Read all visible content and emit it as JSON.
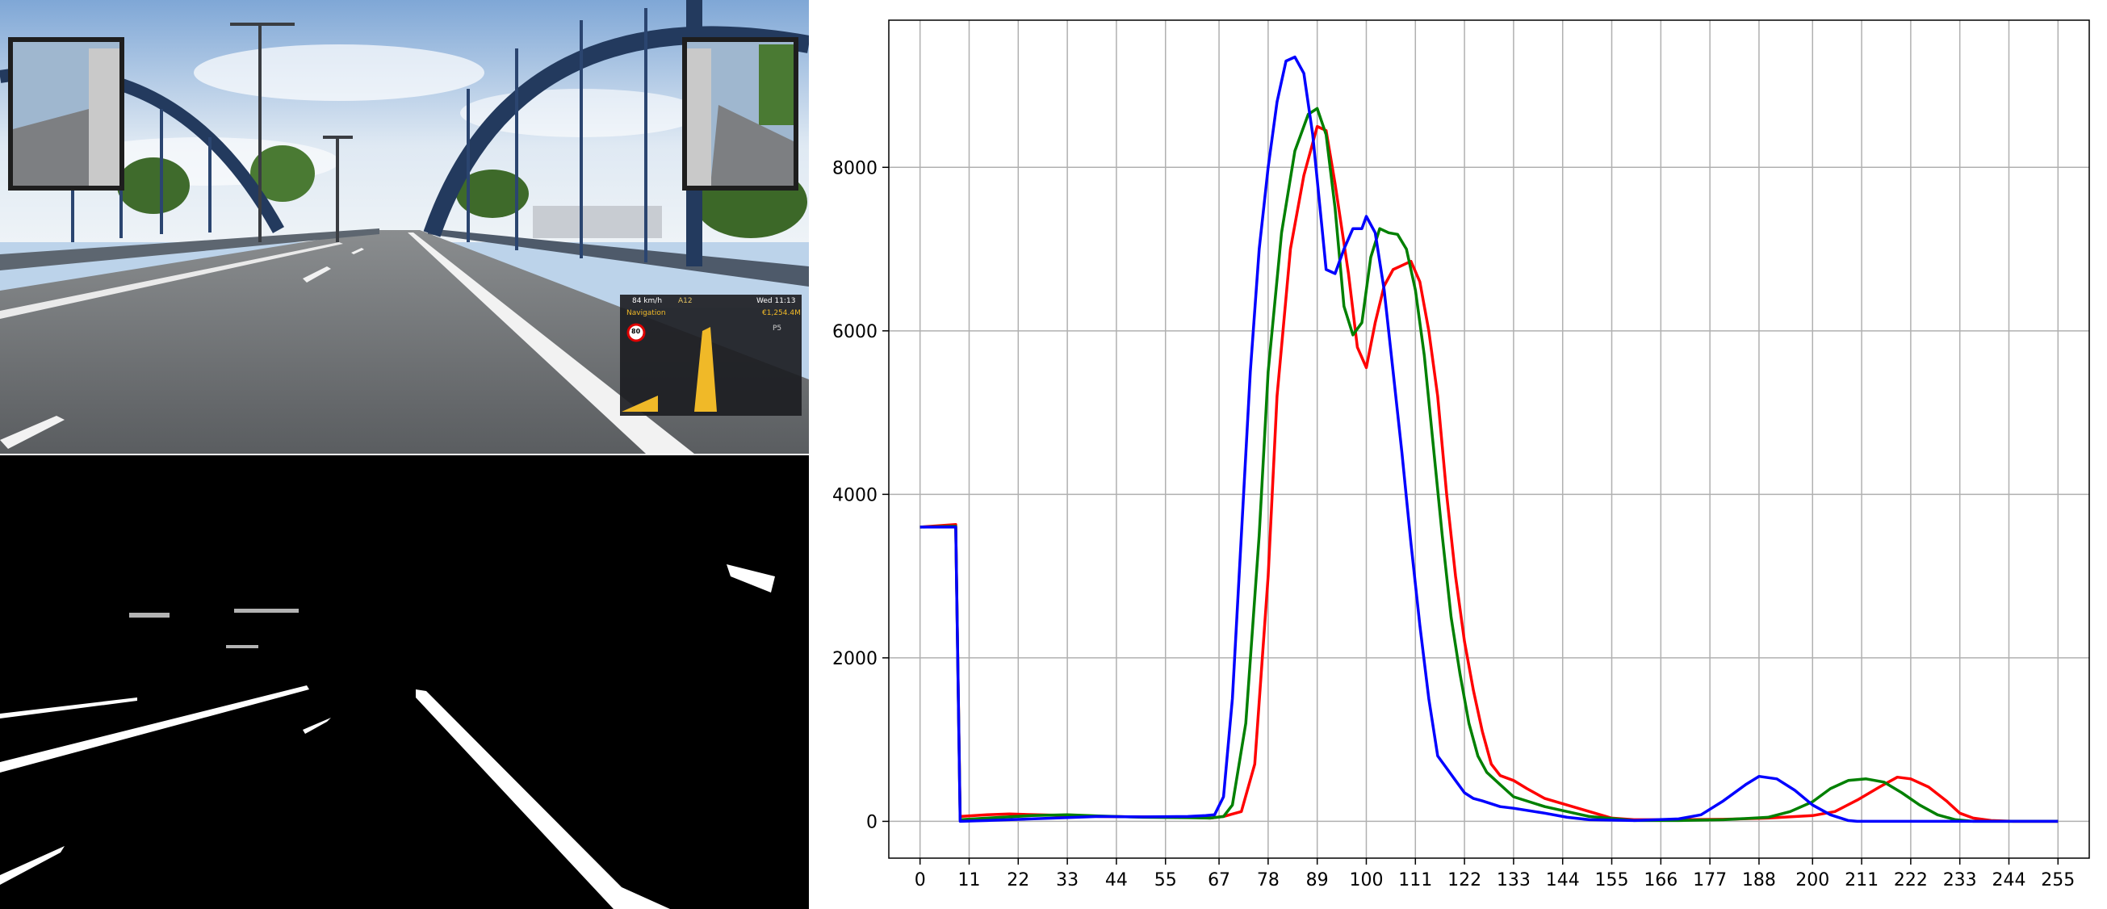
{
  "game_hud": {
    "speed": "84 km/h",
    "road": "A12",
    "time": "Wed 11:13",
    "navigation": "Navigation",
    "money": "€1,254.4M",
    "speed_limit": "80",
    "zoom": "P5"
  },
  "colors": {
    "red": "#ff0000",
    "green": "#008000",
    "blue": "#0000ff",
    "grid": "#b0b0b0"
  },
  "chart_data": {
    "type": "line",
    "title": "",
    "xlabel": "",
    "ylabel": "",
    "xlim": [
      -7,
      262
    ],
    "ylim": [
      -450,
      9800
    ],
    "xticks": [
      0,
      11,
      22,
      33,
      44,
      55,
      67,
      78,
      89,
      100,
      111,
      122,
      133,
      144,
      155,
      166,
      177,
      188,
      200,
      211,
      222,
      233,
      244,
      255
    ],
    "yticks": [
      0,
      2000,
      4000,
      6000,
      8000
    ],
    "grid": true,
    "legend": "none",
    "series": [
      {
        "color": "red",
        "x": [
          0,
          8,
          9,
          15,
          20,
          30,
          40,
          50,
          60,
          65,
          68,
          72,
          75,
          78,
          80,
          83,
          86,
          89,
          91,
          93,
          96,
          98,
          100,
          102,
          104,
          106,
          108,
          110,
          112,
          114,
          116,
          118,
          120,
          122,
          124,
          126,
          128,
          130,
          133,
          136,
          140,
          145,
          150,
          155,
          160,
          170,
          180,
          190,
          200,
          205,
          210,
          215,
          219,
          222,
          226,
          230,
          233,
          236,
          240,
          245,
          255
        ],
        "y": [
          3600,
          3630,
          60,
          80,
          90,
          75,
          60,
          55,
          50,
          40,
          60,
          120,
          700,
          3000,
          5200,
          7000,
          7900,
          8500,
          8450,
          7800,
          6700,
          5800,
          5550,
          6100,
          6550,
          6750,
          6800,
          6850,
          6600,
          6000,
          5200,
          4000,
          3000,
          2200,
          1600,
          1100,
          700,
          560,
          500,
          400,
          280,
          200,
          120,
          40,
          20,
          20,
          25,
          40,
          70,
          120,
          260,
          420,
          540,
          520,
          420,
          250,
          100,
          40,
          10,
          0,
          0
        ]
      },
      {
        "color": "green",
        "x": [
          0,
          8,
          9,
          15,
          25,
          33,
          40,
          50,
          60,
          65,
          68,
          70,
          73,
          76,
          78,
          81,
          84,
          87,
          89,
          91,
          93,
          95,
          97,
          99,
          101,
          103,
          105,
          107,
          109,
          111,
          113,
          115,
          117,
          119,
          121,
          123,
          125,
          127,
          130,
          133,
          140,
          150,
          160,
          170,
          180,
          190,
          195,
          200,
          204,
          208,
          212,
          216,
          220,
          224,
          228,
          232,
          236,
          255
        ],
        "y": [
          3600,
          3610,
          20,
          40,
          70,
          80,
          65,
          50,
          45,
          40,
          60,
          200,
          1200,
          3500,
          5500,
          7200,
          8200,
          8650,
          8720,
          8400,
          7500,
          6300,
          5950,
          6100,
          6900,
          7250,
          7200,
          7180,
          7000,
          6500,
          5700,
          4600,
          3500,
          2500,
          1800,
          1200,
          800,
          600,
          450,
          300,
          180,
          60,
          10,
          10,
          20,
          50,
          120,
          240,
          400,
          500,
          520,
          480,
          350,
          200,
          80,
          20,
          0,
          0
        ]
      },
      {
        "color": "blue",
        "x": [
          0,
          8,
          9,
          15,
          20,
          30,
          40,
          50,
          60,
          64,
          66,
          68,
          70,
          72,
          74,
          76,
          78,
          80,
          82,
          84,
          86,
          88,
          90,
          91,
          93,
          95,
          97,
          99,
          100,
          102,
          104,
          106,
          108,
          110,
          112,
          114,
          116,
          118,
          120,
          122,
          124,
          126,
          130,
          133,
          140,
          145,
          150,
          160,
          170,
          175,
          180,
          185,
          188,
          192,
          196,
          200,
          204,
          208,
          210,
          255
        ],
        "y": [
          3600,
          3600,
          0,
          10,
          20,
          40,
          60,
          55,
          60,
          70,
          80,
          300,
          1500,
          3500,
          5500,
          7000,
          8000,
          8800,
          9300,
          9350,
          9150,
          8400,
          7300,
          6750,
          6700,
          7000,
          7250,
          7250,
          7400,
          7200,
          6500,
          5500,
          4500,
          3400,
          2400,
          1500,
          800,
          650,
          500,
          350,
          280,
          250,
          180,
          160,
          100,
          50,
          20,
          10,
          30,
          80,
          250,
          450,
          550,
          520,
          380,
          200,
          80,
          10,
          0,
          0
        ]
      }
    ]
  }
}
